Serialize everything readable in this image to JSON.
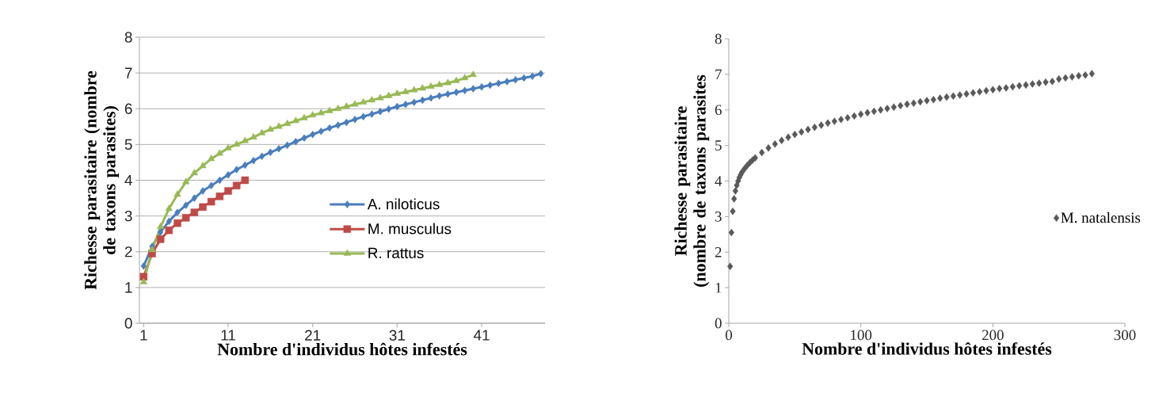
{
  "chart_data": [
    {
      "type": "line",
      "xlabel": "Nombre d'individus hôtes infestés",
      "ylabel": "Richesse parasitaire (nombre de taxons parasites)",
      "xlim": [
        0.5,
        48.5
      ],
      "ylim": [
        0,
        8
      ],
      "xticks": [
        1,
        11,
        21,
        31,
        41
      ],
      "yticks": [
        0,
        1,
        2,
        3,
        4,
        5,
        6,
        7,
        8
      ],
      "grid": "y",
      "legend": "right",
      "series": [
        {
          "name": "A. niloticus",
          "color": "#4a7ebb",
          "marker": "diamond",
          "x": [
            1,
            2,
            3,
            4,
            5,
            6,
            7,
            8,
            9,
            10,
            11,
            12,
            13,
            14,
            15,
            16,
            17,
            18,
            19,
            20,
            21,
            22,
            23,
            24,
            25,
            26,
            27,
            28,
            29,
            30,
            31,
            32,
            33,
            34,
            35,
            36,
            37,
            38,
            39,
            40,
            41,
            42,
            43,
            44,
            45,
            46,
            47,
            48
          ],
          "values": [
            1.6,
            2.15,
            2.55,
            2.85,
            3.1,
            3.3,
            3.5,
            3.7,
            3.85,
            4.0,
            4.15,
            4.3,
            4.42,
            4.55,
            4.67,
            4.78,
            4.88,
            4.98,
            5.08,
            5.18,
            5.28,
            5.37,
            5.46,
            5.54,
            5.62,
            5.7,
            5.78,
            5.85,
            5.92,
            5.99,
            6.06,
            6.12,
            6.18,
            6.24,
            6.3,
            6.36,
            6.41,
            6.46,
            6.51,
            6.56,
            6.61,
            6.66,
            6.71,
            6.76,
            6.81,
            6.86,
            6.91,
            6.98
          ]
        },
        {
          "name": "M. musculus",
          "color": "#be4b48",
          "marker": "square",
          "x": [
            1,
            2,
            3,
            4,
            5,
            6,
            7,
            8,
            9,
            10,
            11,
            12,
            13
          ],
          "values": [
            1.3,
            1.95,
            2.35,
            2.6,
            2.8,
            2.95,
            3.1,
            3.25,
            3.4,
            3.55,
            3.7,
            3.85,
            4.0
          ]
        },
        {
          "name": "R. rattus",
          "color": "#98b954",
          "marker": "triangle",
          "x": [
            1,
            2,
            3,
            4,
            5,
            6,
            7,
            8,
            9,
            10,
            11,
            12,
            13,
            14,
            15,
            16,
            17,
            18,
            19,
            20,
            21,
            22,
            23,
            24,
            25,
            26,
            27,
            28,
            29,
            30,
            31,
            32,
            33,
            34,
            35,
            36,
            37,
            38,
            39,
            40
          ],
          "values": [
            1.15,
            2.05,
            2.7,
            3.2,
            3.6,
            3.95,
            4.2,
            4.4,
            4.6,
            4.75,
            4.9,
            5.0,
            5.1,
            5.2,
            5.32,
            5.42,
            5.5,
            5.58,
            5.66,
            5.74,
            5.82,
            5.88,
            5.94,
            6.0,
            6.06,
            6.12,
            6.18,
            6.24,
            6.3,
            6.36,
            6.42,
            6.47,
            6.52,
            6.57,
            6.62,
            6.67,
            6.72,
            6.78,
            6.86,
            6.95
          ]
        }
      ]
    },
    {
      "type": "scatter",
      "xlabel": "Nombre d'individus hôtes infestés",
      "ylabel": "Richesse parasitaire (nombre de taxons parasites",
      "xlim": [
        0,
        300
      ],
      "ylim": [
        0,
        8
      ],
      "xticks": [
        0,
        100,
        200,
        300
      ],
      "yticks": [
        0,
        1,
        2,
        3,
        4,
        5,
        6,
        7,
        8
      ],
      "legend": "right",
      "series": [
        {
          "name": "M. natalensis",
          "color": "#595959",
          "marker": "diamond",
          "x": [
            1,
            2,
            3,
            4,
            5,
            6,
            7,
            8,
            9,
            10,
            12,
            14,
            16,
            18,
            20,
            25,
            30,
            35,
            40,
            45,
            50,
            55,
            60,
            65,
            70,
            75,
            80,
            85,
            90,
            95,
            100,
            105,
            110,
            115,
            120,
            125,
            130,
            135,
            140,
            145,
            150,
            155,
            160,
            165,
            170,
            175,
            180,
            185,
            190,
            195,
            200,
            205,
            210,
            215,
            220,
            225,
            230,
            235,
            240,
            245,
            250,
            255,
            260,
            265,
            270,
            275
          ],
          "values": [
            1.6,
            2.55,
            3.15,
            3.5,
            3.72,
            3.88,
            4.0,
            4.1,
            4.18,
            4.25,
            4.35,
            4.44,
            4.52,
            4.59,
            4.65,
            4.8,
            4.93,
            5.04,
            5.14,
            5.23,
            5.31,
            5.38,
            5.45,
            5.51,
            5.57,
            5.63,
            5.68,
            5.73,
            5.78,
            5.83,
            5.88,
            5.92,
            5.96,
            6.0,
            6.04,
            6.08,
            6.12,
            6.16,
            6.19,
            6.23,
            6.26,
            6.29,
            6.33,
            6.36,
            6.39,
            6.42,
            6.45,
            6.48,
            6.51,
            6.54,
            6.57,
            6.6,
            6.62,
            6.65,
            6.68,
            6.7,
            6.73,
            6.75,
            6.78,
            6.8,
            6.87,
            6.9,
            6.93,
            6.96,
            6.98,
            7.02
          ]
        }
      ]
    }
  ]
}
